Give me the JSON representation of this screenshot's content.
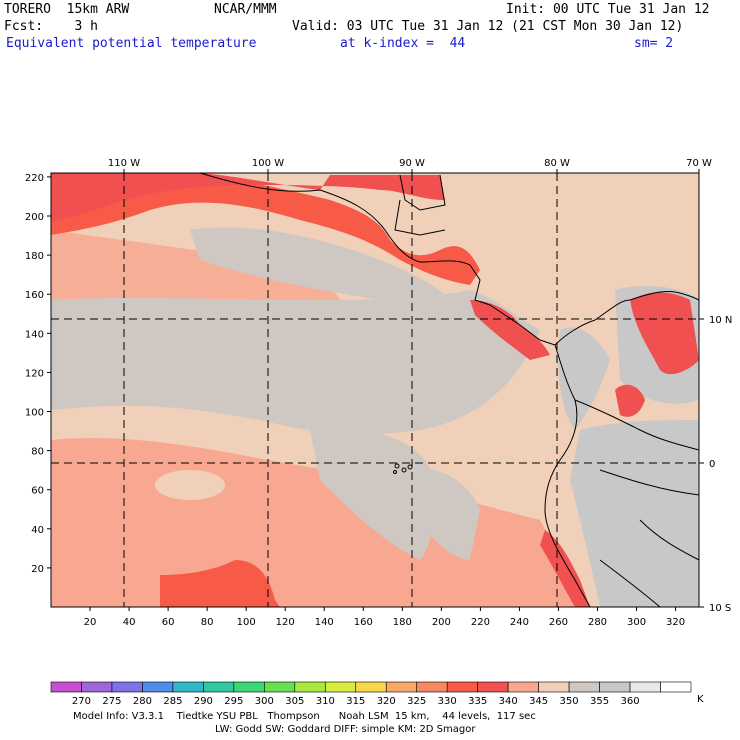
{
  "header": {
    "model": "TORERO  15km ARW",
    "center": "NCAR/MMM",
    "init": "Init: 00 UTC Tue 31 Jan 12",
    "fcst": "Fcst:    3 h",
    "valid": "Valid: 03 UTC Tue 31 Jan 12 (21 CST Mon 30 Jan 12)",
    "field": "Equivalent potential temperature",
    "level": "at k-index =  44",
    "smoothing": "sm= 2"
  },
  "map": {
    "lon_labels": [
      "110 W",
      "100 W",
      "90 W",
      "80 W",
      "70 W"
    ],
    "lat_labels": [
      "10 N",
      "0",
      "10 S"
    ],
    "x_ticks": [
      "20",
      "40",
      "60",
      "80",
      "100",
      "120",
      "140",
      "160",
      "180",
      "200",
      "220",
      "240",
      "260",
      "280",
      "300",
      "320"
    ],
    "y_ticks": [
      "220",
      "200",
      "180",
      "160",
      "140",
      "120",
      "100",
      "80",
      "60",
      "40",
      "20"
    ]
  },
  "colorbar": {
    "unit": "K",
    "levels": [
      "270",
      "275",
      "280",
      "285",
      "290",
      "295",
      "300",
      "305",
      "310",
      "315",
      "320",
      "325",
      "330",
      "335",
      "340",
      "345",
      "350",
      "355",
      "360"
    ],
    "colors": [
      "#c84fd0",
      "#9f66d8",
      "#7f72e8",
      "#4f8de8",
      "#2fb8c8",
      "#2fc8a0",
      "#3cd878",
      "#68e050",
      "#a8e840",
      "#d8ec40",
      "#f8d848",
      "#f8a868",
      "#f88860",
      "#f85a48",
      "#f05050",
      "#f8a890",
      "#f0d0b8",
      "#cfc8c2",
      "#c8c8c8",
      "#e8e8e8",
      "#ffffff"
    ]
  },
  "footer": {
    "line1": "Model Info: V3.3.1    Tiedtke YSU PBL   Thompson      Noah LSM  15 km,    44 levels,  117 sec",
    "line2": "LW: Godd SW: Goddard DIFF: simple KM: 2D Smagor"
  }
}
